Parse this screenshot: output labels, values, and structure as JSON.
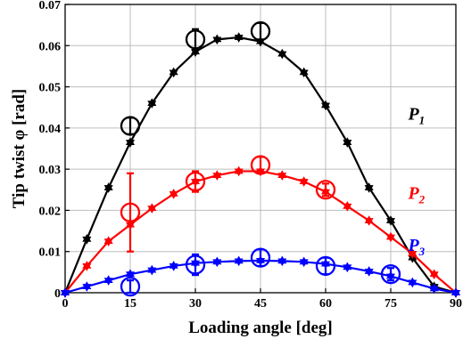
{
  "chart_data": {
    "type": "line",
    "xlabel": "Loading angle [deg]",
    "ylabel": "Tip twist φ [rad]",
    "xlim": [
      0,
      90
    ],
    "ylim": [
      0,
      0.07
    ],
    "x_ticks": [
      "0",
      "15",
      "30",
      "45",
      "60",
      "75",
      "90"
    ],
    "y_ticks": [
      "0",
      "0.01",
      "0.02",
      "0.03",
      "0.04",
      "0.05",
      "0.06",
      "0.07"
    ],
    "grid": true,
    "series": [
      {
        "name": "P",
        "subscript": "1",
        "color": "#000000",
        "x": [
          0,
          5,
          10,
          15,
          20,
          25,
          30,
          35,
          40,
          45,
          50,
          55,
          60,
          65,
          70,
          75,
          80,
          85,
          90
        ],
        "y": [
          0,
          0.013,
          0.0255,
          0.0365,
          0.046,
          0.0535,
          0.0585,
          0.0615,
          0.062,
          0.061,
          0.058,
          0.0535,
          0.0455,
          0.0365,
          0.0255,
          0.0175,
          0.0085,
          0.0015,
          0
        ],
        "measured": [
          {
            "x": 15,
            "y": 0.0405,
            "err": 0.002
          },
          {
            "x": 30,
            "y": 0.0615,
            "err": 0.0025
          },
          {
            "x": 45,
            "y": 0.0635,
            "err": 0.002
          }
        ]
      },
      {
        "name": "P",
        "subscript": "2",
        "color": "#ff0000",
        "x": [
          0,
          5,
          10,
          15,
          20,
          25,
          30,
          35,
          40,
          45,
          50,
          55,
          60,
          65,
          70,
          75,
          80,
          85,
          90
        ],
        "y": [
          0,
          0.0065,
          0.0125,
          0.0165,
          0.0205,
          0.024,
          0.027,
          0.0285,
          0.0295,
          0.0295,
          0.0285,
          0.027,
          0.0245,
          0.021,
          0.0175,
          0.0135,
          0.0095,
          0.0045,
          0
        ],
        "measured": [
          {
            "x": 15,
            "y": 0.0195,
            "err": 0.0095
          },
          {
            "x": 30,
            "y": 0.027,
            "err": 0.0025
          },
          {
            "x": 45,
            "y": 0.031,
            "err": 0.002
          },
          {
            "x": 60,
            "y": 0.025,
            "err": 0.0015
          }
        ]
      },
      {
        "name": "P",
        "subscript": "3",
        "color": "#0000ff",
        "x": [
          0,
          5,
          10,
          15,
          20,
          25,
          30,
          35,
          40,
          45,
          50,
          55,
          60,
          65,
          70,
          75,
          80,
          85,
          90
        ],
        "y": [
          0,
          0.0015,
          0.003,
          0.0045,
          0.0055,
          0.0065,
          0.0072,
          0.0075,
          0.0077,
          0.0078,
          0.0077,
          0.0075,
          0.007,
          0.0062,
          0.0052,
          0.004,
          0.0025,
          0.001,
          0
        ],
        "measured": [
          {
            "x": 15,
            "y": 0.0015,
            "err": 0.0015
          },
          {
            "x": 30,
            "y": 0.0068,
            "err": 0.0025
          },
          {
            "x": 45,
            "y": 0.0085,
            "err": 0.002
          },
          {
            "x": 60,
            "y": 0.0065,
            "err": 0.002
          },
          {
            "x": 75,
            "y": 0.0045,
            "err": 0.0015
          }
        ]
      }
    ]
  }
}
